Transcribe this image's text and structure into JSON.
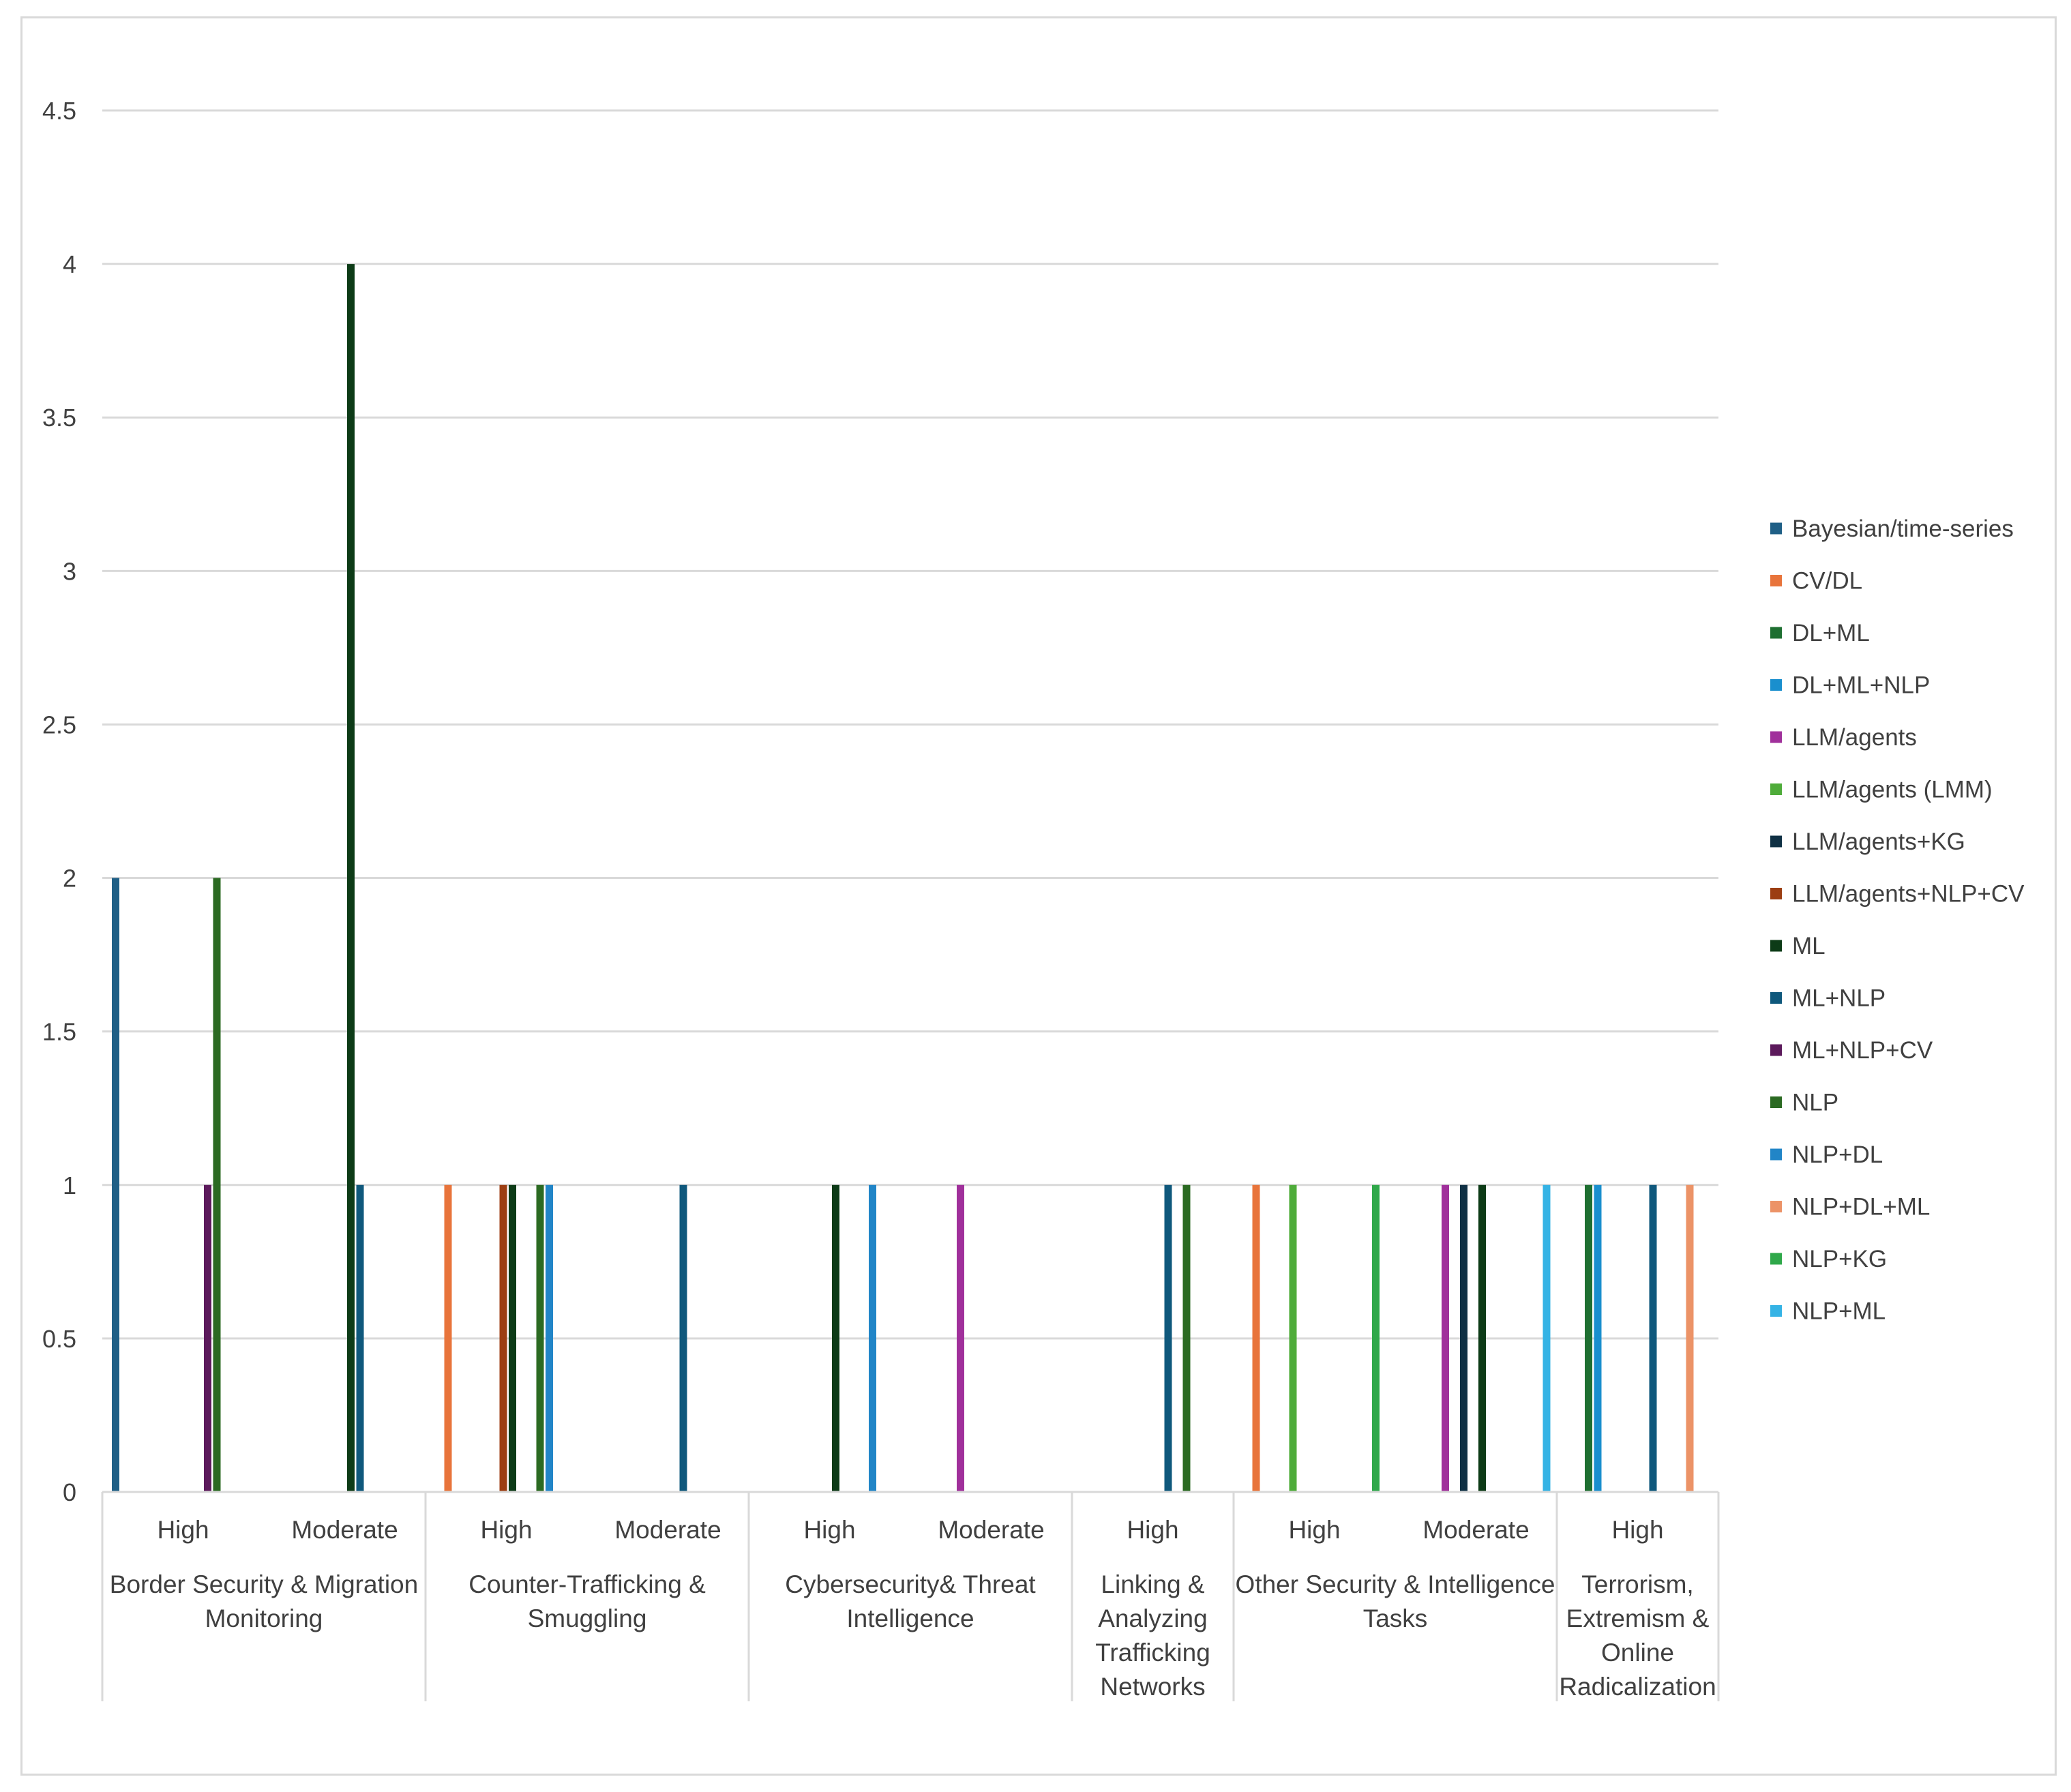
{
  "chart_data": {
    "type": "bar",
    "title": "",
    "xlabel": "",
    "ylabel": "",
    "ylim": [
      0,
      4.5
    ],
    "yticks": [
      "0",
      "0.5",
      "1",
      "1.5",
      "2",
      "2.5",
      "3",
      "3.5",
      "4",
      "4.5"
    ],
    "legend_position": "right",
    "grid": true,
    "groups": [
      {
        "label_lines": [
          "Border Security & Migration",
          "Monitoring"
        ],
        "subcats": [
          "High",
          "Moderate"
        ]
      },
      {
        "label_lines": [
          "Counter-Trafficking &",
          "Smuggling"
        ],
        "subcats": [
          "High",
          "Moderate"
        ]
      },
      {
        "label_lines": [
          "Cybersecurity& Threat",
          "Intelligence"
        ],
        "subcats": [
          "High",
          "Moderate"
        ]
      },
      {
        "label_lines": [
          "Linking &",
          "Analyzing",
          "Trafficking",
          "Networks"
        ],
        "subcats": [
          "High"
        ]
      },
      {
        "label_lines": [
          "Other Security & Intelligence",
          "Tasks"
        ],
        "subcats": [
          "High",
          "Moderate"
        ]
      },
      {
        "label_lines": [
          "Terrorism,",
          "Extremism &",
          "Online",
          "Radicalization"
        ],
        "subcats": [
          "High"
        ]
      }
    ],
    "categories": [
      "Border Security & Migration Monitoring | High",
      "Border Security & Migration Monitoring | Moderate",
      "Counter-Trafficking & Smuggling | High",
      "Counter-Trafficking & Smuggling | Moderate",
      "Cybersecurity& Threat Intelligence | High",
      "Cybersecurity& Threat Intelligence | Moderate",
      "Linking & Analyzing Trafficking Networks | High",
      "Other Security & Intelligence Tasks | High",
      "Other Security & Intelligence Tasks | Moderate",
      "Terrorism, Extremism & Online Radicalization | High"
    ],
    "series": [
      {
        "name": "Bayesian/time-series",
        "color": "#1f5f86",
        "values": [
          2,
          0,
          0,
          0,
          0,
          0,
          0,
          0,
          0,
          0
        ]
      },
      {
        "name": "CV/DL",
        "color": "#e8743b",
        "values": [
          0,
          0,
          1,
          0,
          0,
          0,
          0,
          1,
          0,
          0
        ]
      },
      {
        "name": "DL+ML",
        "color": "#1e6f31",
        "values": [
          0,
          0,
          0,
          0,
          0,
          0,
          0,
          0,
          0,
          1
        ]
      },
      {
        "name": "DL+ML+NLP",
        "color": "#1a8fce",
        "values": [
          0,
          0,
          0,
          0,
          0,
          0,
          0,
          0,
          0,
          1
        ]
      },
      {
        "name": "LLM/agents",
        "color": "#a0309b",
        "values": [
          0,
          0,
          0,
          0,
          0,
          1,
          0,
          0,
          1,
          0
        ]
      },
      {
        "name": "LLM/agents (LMM)",
        "color": "#4fac3a",
        "values": [
          0,
          0,
          0,
          0,
          0,
          0,
          0,
          1,
          0,
          0
        ]
      },
      {
        "name": "LLM/agents+KG",
        "color": "#0f3044",
        "values": [
          0,
          0,
          0,
          0,
          0,
          0,
          0,
          0,
          1,
          0
        ]
      },
      {
        "name": "LLM/agents+NLP+CV",
        "color": "#9c3e12",
        "values": [
          0,
          0,
          1,
          0,
          0,
          0,
          0,
          0,
          0,
          0
        ]
      },
      {
        "name": "ML",
        "color": "#0d3b17",
        "values": [
          0,
          4,
          1,
          0,
          1,
          0,
          0,
          0,
          1,
          0
        ]
      },
      {
        "name": "ML+NLP",
        "color": "#0f587c",
        "values": [
          0,
          1,
          0,
          1,
          0,
          0,
          1,
          0,
          0,
          1
        ]
      },
      {
        "name": "ML+NLP+CV",
        "color": "#5c1a5c",
        "values": [
          1,
          0,
          0,
          0,
          0,
          0,
          0,
          0,
          0,
          0
        ]
      },
      {
        "name": "NLP",
        "color": "#2b6a22",
        "values": [
          2,
          0,
          1,
          0,
          0,
          0,
          1,
          0,
          0,
          0
        ]
      },
      {
        "name": "NLP+DL",
        "color": "#2185c7",
        "values": [
          0,
          0,
          1,
          0,
          1,
          0,
          0,
          0,
          0,
          0
        ]
      },
      {
        "name": "NLP+DL+ML",
        "color": "#ec9367",
        "values": [
          0,
          0,
          0,
          0,
          0,
          0,
          0,
          0,
          0,
          1
        ]
      },
      {
        "name": "NLP+KG",
        "color": "#2fa84a",
        "values": [
          0,
          0,
          0,
          0,
          0,
          0,
          0,
          1,
          0,
          0
        ]
      },
      {
        "name": "NLP+ML",
        "color": "#35b3e5",
        "values": [
          0,
          0,
          0,
          0,
          0,
          0,
          0,
          0,
          1,
          0
        ]
      }
    ]
  }
}
